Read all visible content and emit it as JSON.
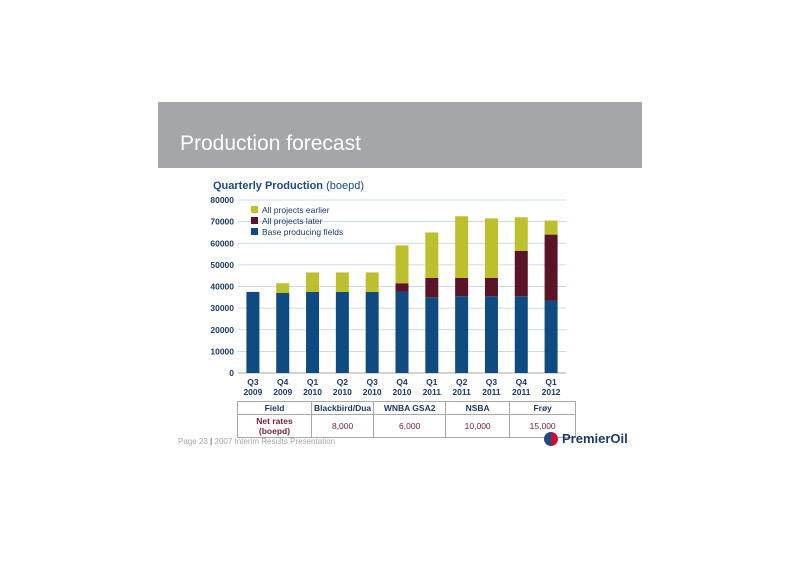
{
  "slide": {
    "title": "Production forecast"
  },
  "chart_title": {
    "main": "Quarterly Production",
    "unit": " (boepd)"
  },
  "chart_data": {
    "type": "bar",
    "stacked": true,
    "title": "Quarterly Production (boepd)",
    "categories": [
      [
        "Q3",
        "2009"
      ],
      [
        "Q4",
        "2009"
      ],
      [
        "Q1",
        "2010"
      ],
      [
        "Q2",
        "2010"
      ],
      [
        "Q3",
        "2010"
      ],
      [
        "Q4",
        "2010"
      ],
      [
        "Q1",
        "2011"
      ],
      [
        "Q2",
        "2011"
      ],
      [
        "Q3",
        "2011"
      ],
      [
        "Q4",
        "2011"
      ],
      [
        "Q1",
        "2012"
      ]
    ],
    "series": [
      {
        "name": "Base producing fields",
        "color": "#0f4a80",
        "values": [
          37500,
          37000,
          37500,
          37500,
          37500,
          37500,
          35000,
          35500,
          35500,
          35500,
          33500
        ]
      },
      {
        "name": "All projects later",
        "color": "#5a1428",
        "values": [
          0,
          0,
          0,
          0,
          0,
          4000,
          9000,
          8500,
          8500,
          21000,
          30500
        ]
      },
      {
        "name": "All projects earlier",
        "color": "#bcc02c",
        "values": [
          0,
          4500,
          9000,
          9000,
          9000,
          17500,
          21000,
          28500,
          27500,
          15500,
          6500
        ]
      }
    ],
    "legend_order": [
      "All projects earlier",
      "All projects later",
      "Base producing fields"
    ],
    "legend_position": "top-left",
    "ylim": [
      0,
      80000
    ],
    "yticks": [
      "0",
      "10000",
      "20000",
      "30000",
      "40000",
      "50000",
      "60000",
      "70000",
      "80000"
    ],
    "grid": true
  },
  "table": {
    "header": [
      "Field",
      "Blackbird/Dua",
      "WNBA GSA2",
      "NSBA",
      "Frøy"
    ],
    "rates": [
      "Net rates (boepd)",
      "8,000",
      "6,000",
      "10,000",
      "15,000"
    ]
  },
  "footer": {
    "page": "Page 23",
    "sep": "|",
    "title": "2007 Interim Results Presentation"
  },
  "logo": {
    "text": "PremierOil"
  }
}
